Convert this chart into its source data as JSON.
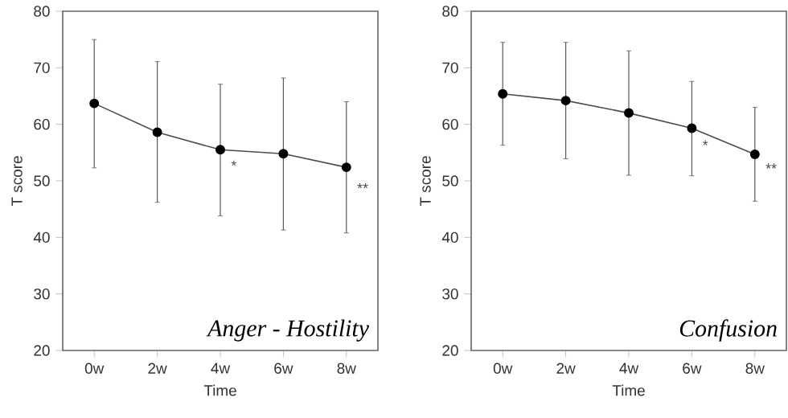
{
  "chart_data": [
    {
      "type": "line",
      "title": "Anger - Hostility",
      "xlabel": "Time",
      "ylabel": "T score",
      "categories": [
        "0w",
        "2w",
        "4w",
        "6w",
        "8w"
      ],
      "series": [
        {
          "color": "#000000",
          "values": [
            63.7,
            58.6,
            55.5,
            54.8,
            52.4
          ],
          "errors": [
            [
              52.3,
              75.0
            ],
            [
              46.2,
              71.1
            ],
            [
              43.8,
              67.1
            ],
            [
              41.3,
              68.2
            ],
            [
              40.8,
              64.0
            ]
          ]
        }
      ],
      "ylim": [
        20,
        80
      ],
      "yticks": [
        20,
        30,
        40,
        50,
        60,
        70,
        80
      ],
      "marker": "circle",
      "line_style": "solid",
      "annotations": [
        {
          "text": "*",
          "x": "4w",
          "y": 52.7
        },
        {
          "text": "**",
          "x": "8w",
          "y": 48.7
        }
      ]
    },
    {
      "type": "line",
      "title": "Confusion",
      "xlabel": "Time",
      "ylabel": "T score",
      "categories": [
        "0w",
        "2w",
        "4w",
        "6w",
        "8w"
      ],
      "series": [
        {
          "color": "#000000",
          "values": [
            65.4,
            64.2,
            62.0,
            59.3,
            54.7
          ],
          "errors": [
            [
              56.3,
              74.5
            ],
            [
              53.9,
              74.5
            ],
            [
              51.0,
              73.0
            ],
            [
              50.9,
              67.6
            ],
            [
              46.4,
              63.0
            ]
          ]
        }
      ],
      "ylim": [
        20,
        80
      ],
      "yticks": [
        20,
        30,
        40,
        50,
        60,
        70,
        80
      ],
      "marker": "circle",
      "line_style": "solid",
      "annotations": [
        {
          "text": "*",
          "x": "6w",
          "y": 56.3
        },
        {
          "text": "**",
          "x": "8w",
          "y": 52.2
        }
      ]
    }
  ]
}
